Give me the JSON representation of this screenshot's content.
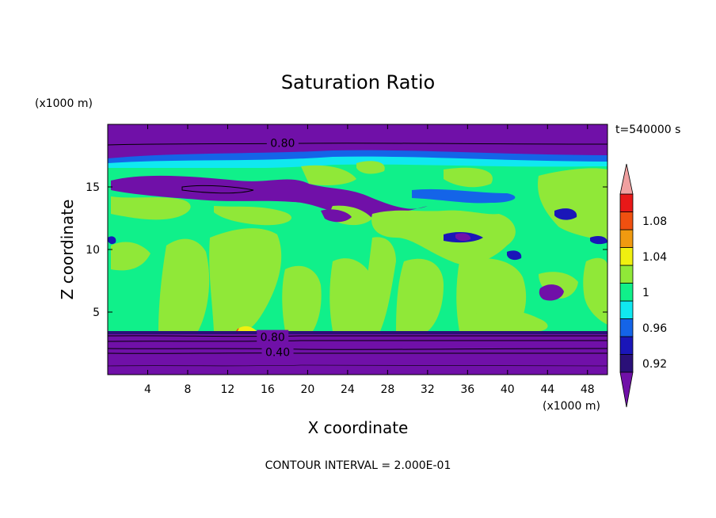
{
  "chart_data": {
    "type": "heatmap",
    "title": "Saturation Ratio",
    "xlabel": "X coordinate",
    "ylabel": "Z coordinate",
    "x_unit": "(x1000 m)",
    "y_unit": "(x1000 m)",
    "time_label": "t=540000 s",
    "footer": "CONTOUR INTERVAL = 2.000E-01",
    "xlim": [
      0,
      50
    ],
    "ylim": [
      0,
      20
    ],
    "x_ticks": [
      4,
      8,
      12,
      16,
      20,
      24,
      28,
      32,
      36,
      40,
      44,
      48
    ],
    "y_ticks": [
      5,
      10,
      15
    ],
    "colorbar": {
      "levels": [
        0.9,
        0.92,
        0.94,
        0.96,
        0.98,
        1.0,
        1.02,
        1.04,
        1.06,
        1.08,
        1.1
      ],
      "labels": [
        {
          "value": 0.92,
          "text": "0.92"
        },
        {
          "value": 0.96,
          "text": "0.96"
        },
        {
          "value": 1.0,
          "text": "1"
        },
        {
          "value": 1.04,
          "text": "1.04"
        },
        {
          "value": 1.08,
          "text": "1.08"
        }
      ],
      "colors": [
        "#2a1078",
        "#1a16b8",
        "#1464e8",
        "#10e8f0",
        "#10f08a",
        "#90e838",
        "#f0f010",
        "#f09a10",
        "#f05010",
        "#e81818"
      ],
      "under_color": "#7010a8",
      "over_color": "#f0a0a0"
    },
    "contour_labels": [
      {
        "text": "0.80",
        "x": 17.5,
        "y": 18.5
      },
      {
        "text": "0.80",
        "x": 16.5,
        "y": 3.0
      },
      {
        "text": "0.40",
        "x": 17.0,
        "y": 1.8
      }
    ],
    "bands": [
      {
        "name": "upper_dry",
        "z_range": [
          17.0,
          20.0
        ],
        "value": 0.8
      },
      {
        "name": "mid_cloud",
        "z_range": [
          3.2,
          16.5
        ],
        "value": 1.0
      },
      {
        "name": "lower_dry",
        "z_range": [
          0.0,
          3.2
        ],
        "value": 0.6
      }
    ]
  }
}
